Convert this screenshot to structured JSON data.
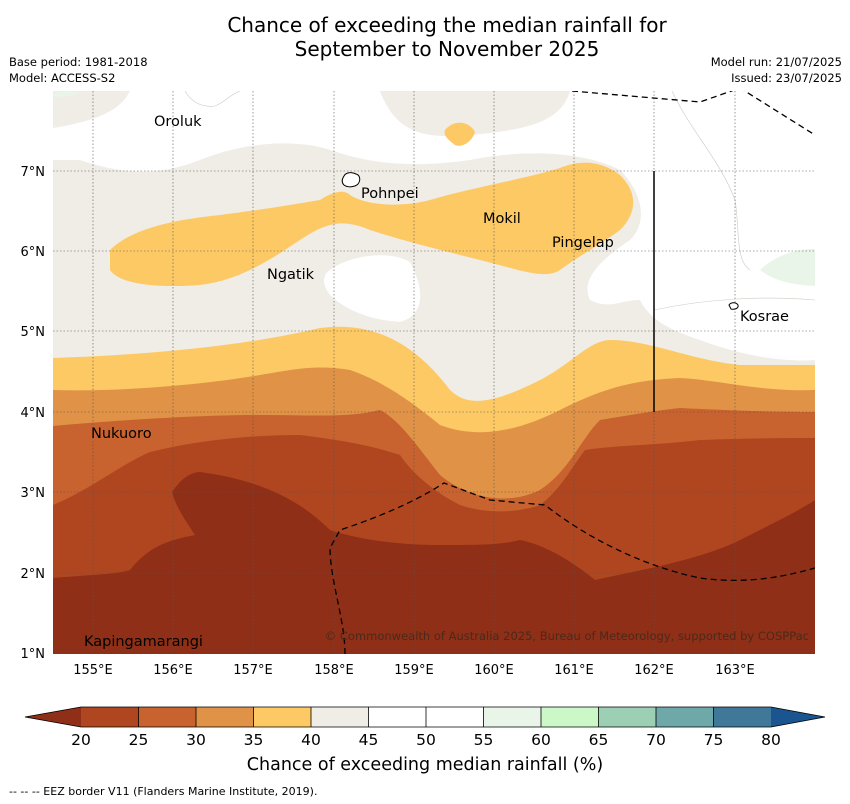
{
  "title_line1": "Chance of exceeding the median rainfall for",
  "title_line2": "September to November 2025",
  "meta": {
    "base_period": "Base period: 1981-2018",
    "model": "Model: ACCESS-S2",
    "model_run": "Model run: 21/07/2025",
    "issued": "Issued: 23/07/2025"
  },
  "map": {
    "lon_ticks": [
      "155°E",
      "156°E",
      "157°E",
      "158°E",
      "159°E",
      "160°E",
      "161°E",
      "162°E",
      "163°E"
    ],
    "lat_ticks": [
      "7°N",
      "6°N",
      "5°N",
      "4°N",
      "3°N",
      "2°N",
      "1°N"
    ],
    "places": {
      "oroluk": "Oroluk",
      "pohnpei": "Pohnpei",
      "mokil": "Mokil",
      "pingelap": "Pingelap",
      "ngatik": "Ngatik",
      "kosrae": "Kosrae",
      "nukuoro": "Nukuoro",
      "kapingamarangi": "Kapingamarangi"
    },
    "copyright": "© Commonwealth of Australia 2025, Bureau of Meteorology, supported by COSPPac"
  },
  "colorbar": {
    "title": "Chance of exceeding median rainfall (%)",
    "ticks": [
      "20",
      "25",
      "30",
      "35",
      "40",
      "45",
      "50",
      "55",
      "60",
      "65",
      "70",
      "75",
      "80"
    ],
    "colors": {
      "under": "#8f2f17",
      "c20_25": "#b0461f",
      "c25_30": "#c8622e",
      "c30_35": "#e09346",
      "c35_40": "#fdc965",
      "c40_45": "#f0ece6",
      "c45_50": "#ffffff",
      "c50_55": "#ffffff",
      "c55_60": "#eaf5ea",
      "c60_65": "#ccf8c8",
      "c65_70": "#9ccfb4",
      "c70_75": "#6fa8a8",
      "c75_80": "#3f7898",
      "over": "#1a5590"
    }
  },
  "footnote": "-- -- -- EEZ border V11 (Flanders Marine Institute, 2019)."
}
